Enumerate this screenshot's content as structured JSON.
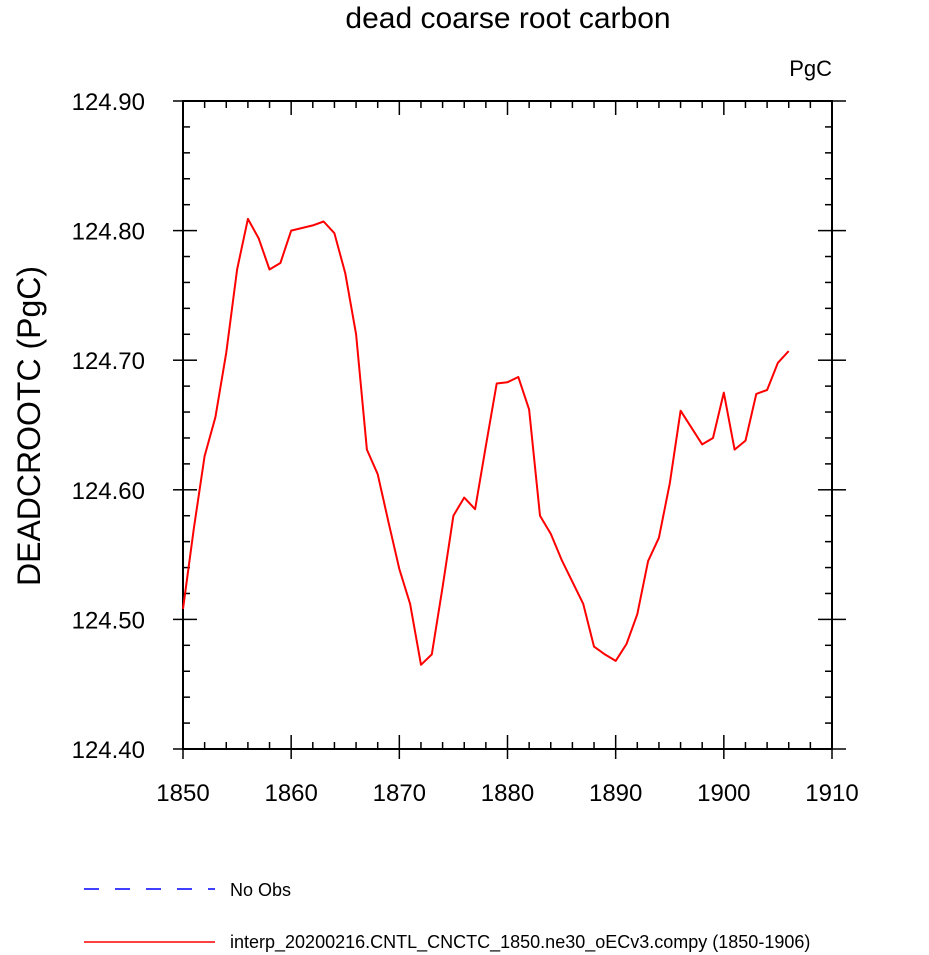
{
  "chart_data": {
    "type": "line",
    "title": "dead coarse root carbon",
    "units_label": "PgC",
    "xlabel": "",
    "ylabel": "DEADCROOTC  (PgC)",
    "xlim": [
      1850,
      1910
    ],
    "ylim": [
      124.4,
      124.9
    ],
    "xticks": [
      "1850",
      "1860",
      "1870",
      "1880",
      "1890",
      "1900",
      "1910"
    ],
    "yticks": [
      "124.40",
      "124.50",
      "124.60",
      "124.70",
      "124.80",
      "124.90"
    ],
    "grid": false,
    "legend_position": "bottom",
    "series": [
      {
        "name": "No Obs",
        "color": "#0000ff",
        "dash": "dashed",
        "x": [],
        "y": []
      },
      {
        "name": "interp_20200216.CNTL_CNCTC_1850.ne30_oECv3.compy (1850-1906)",
        "color": "#ff0000",
        "dash": "solid",
        "x": [
          1850,
          1851,
          1852,
          1853,
          1854,
          1855,
          1856,
          1857,
          1858,
          1859,
          1860,
          1861,
          1862,
          1863,
          1864,
          1865,
          1866,
          1867,
          1868,
          1869,
          1870,
          1871,
          1872,
          1873,
          1874,
          1875,
          1876,
          1877,
          1878,
          1879,
          1880,
          1881,
          1882,
          1883,
          1884,
          1885,
          1886,
          1887,
          1888,
          1889,
          1890,
          1891,
          1892,
          1893,
          1894,
          1895,
          1896,
          1897,
          1898,
          1899,
          1900,
          1901,
          1902,
          1903,
          1904,
          1905,
          1906
        ],
        "y": [
          124.508,
          124.57,
          124.626,
          124.656,
          124.706,
          124.77,
          124.809,
          124.794,
          124.77,
          124.775,
          124.8,
          124.802,
          124.804,
          124.807,
          124.798,
          124.767,
          124.72,
          124.631,
          124.612,
          124.575,
          124.539,
          124.512,
          124.465,
          124.473,
          124.525,
          124.58,
          124.594,
          124.585,
          124.634,
          124.682,
          124.683,
          124.687,
          124.662,
          124.58,
          124.566,
          124.546,
          124.529,
          124.512,
          124.479,
          124.473,
          124.468,
          124.481,
          124.504,
          124.545,
          124.563,
          124.605,
          124.661,
          124.648,
          124.635,
          124.64,
          124.675,
          124.631,
          124.638,
          124.674,
          124.677,
          124.698,
          124.707
        ]
      }
    ]
  }
}
